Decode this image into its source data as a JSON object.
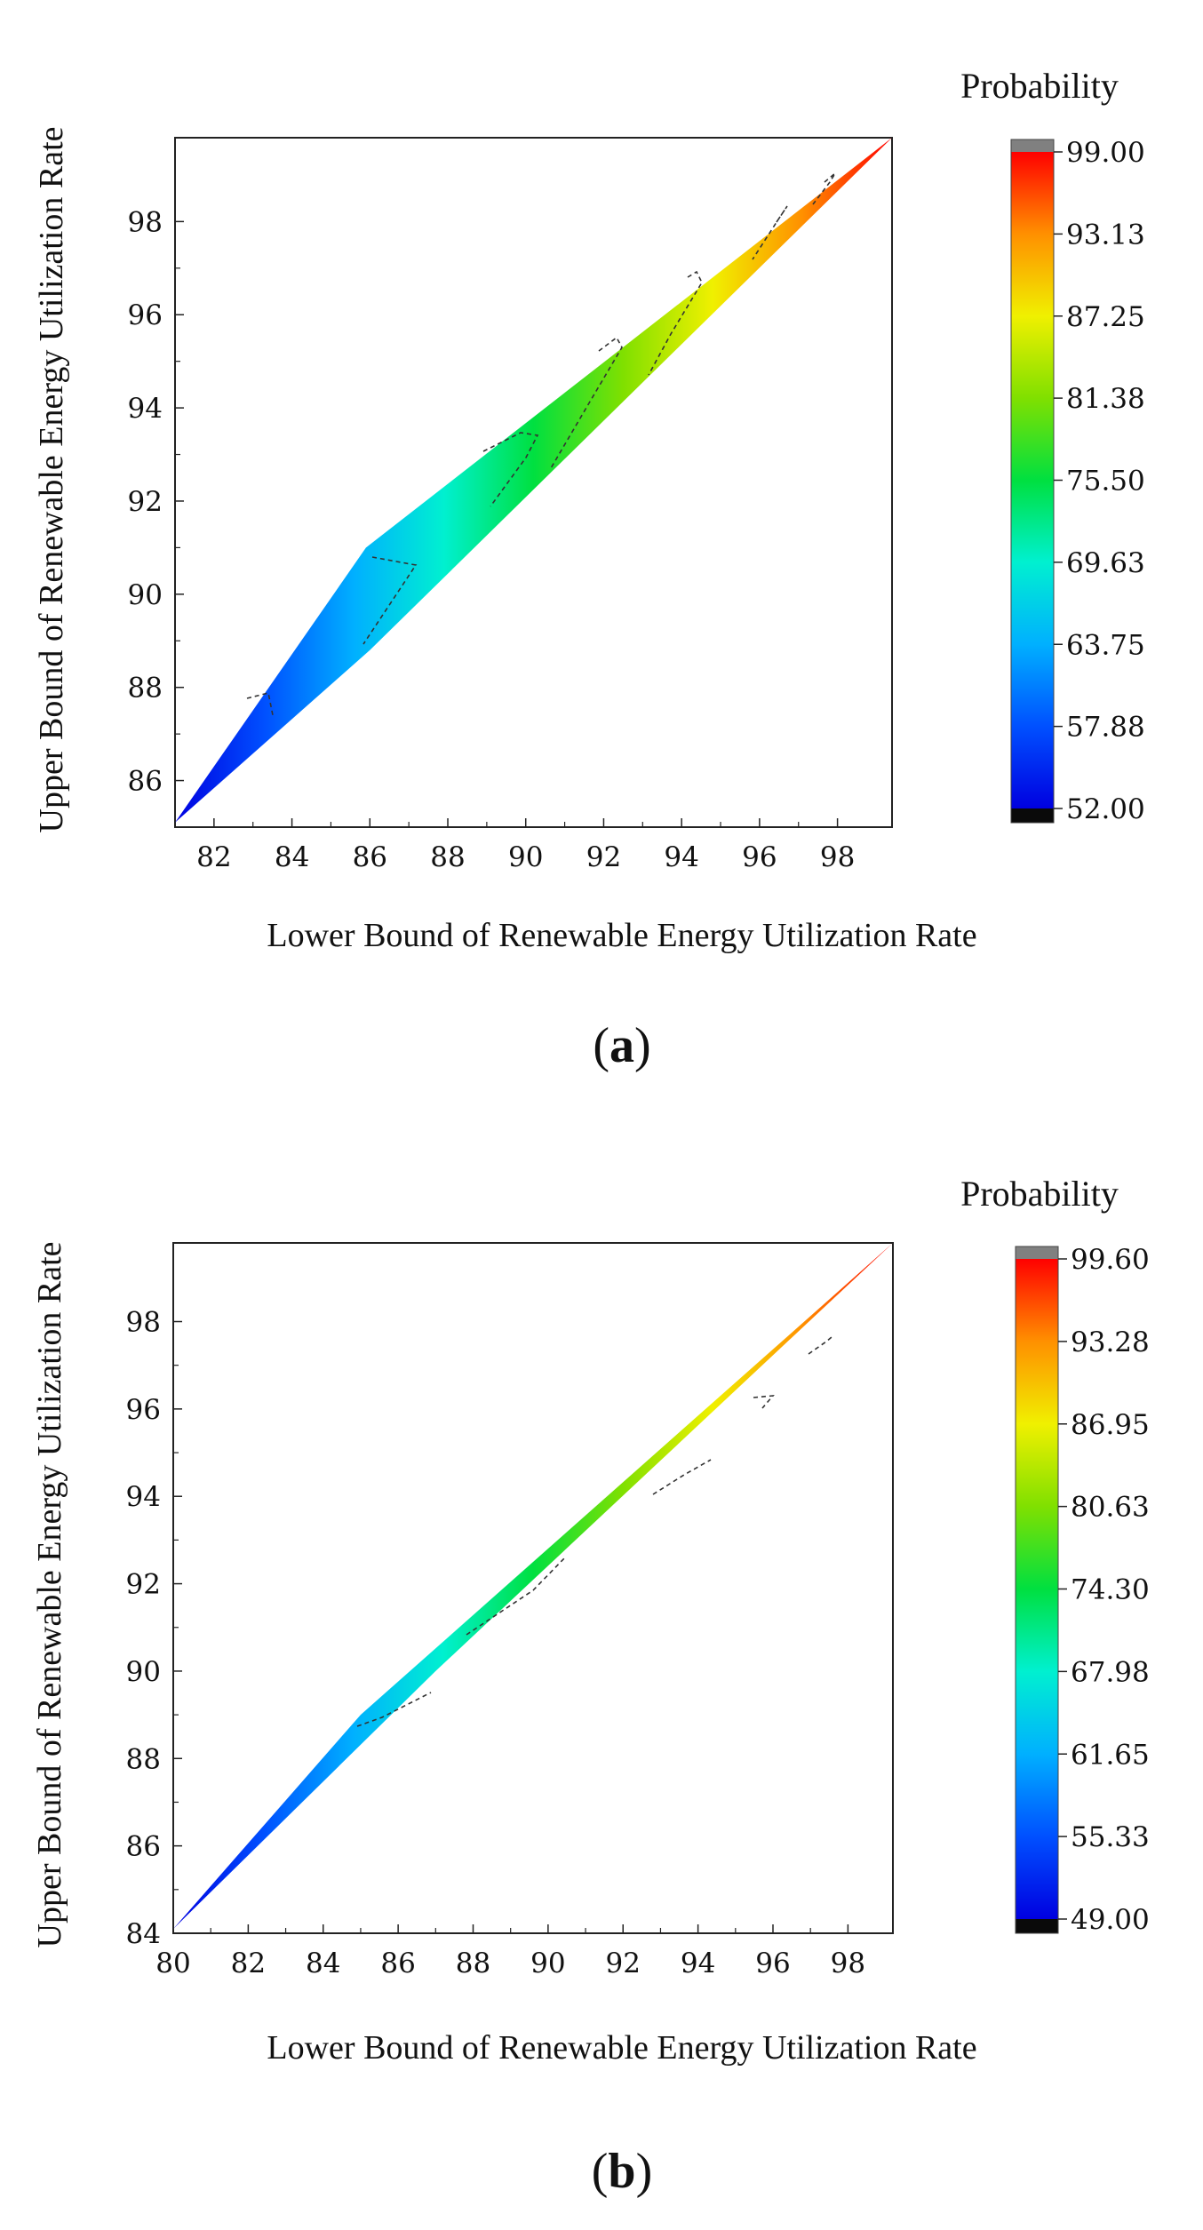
{
  "chart_data": [
    {
      "type": "area",
      "panel_label": "a",
      "xlabel": "Lower Bound of Renewable Energy Utilization Rate",
      "ylabel": "Upper Bound of Renewable Energy Utilization Rate",
      "xlim": [
        81,
        99.4
      ],
      "ylim": [
        85,
        99.8
      ],
      "x_ticks": [
        82,
        84,
        86,
        88,
        90,
        92,
        94,
        96,
        98
      ],
      "y_ticks": [
        86,
        88,
        90,
        92,
        94,
        96,
        98
      ],
      "x_tick_labels": [
        "82",
        "84",
        "86",
        "88",
        "90",
        "92",
        "94",
        "96",
        "98"
      ],
      "y_tick_labels": [
        "86",
        "88",
        "90",
        "92",
        "94",
        "96",
        "98"
      ],
      "region_upper_edge": [
        [
          81,
          85.1
        ],
        [
          85.9,
          91
        ],
        [
          99.4,
          99.8
        ]
      ],
      "region_lower_edge": [
        [
          81,
          85.1
        ],
        [
          86,
          88.8
        ],
        [
          99.4,
          99.8
        ]
      ],
      "colorbar": {
        "title": "Probability",
        "min": 52,
        "max": 99,
        "ticks": [
          "99.00",
          "93.13",
          "87.25",
          "81.38",
          "75.50",
          "69.63",
          "63.75",
          "57.88",
          "52.00"
        ]
      }
    },
    {
      "type": "area",
      "panel_label": "b",
      "xlabel": "Lower Bound of Renewable Energy Utilization Rate",
      "ylabel": "Upper Bound of Renewable Energy Utilization Rate",
      "xlim": [
        80,
        99.2
      ],
      "ylim": [
        84,
        99.8
      ],
      "x_ticks": [
        80,
        82,
        84,
        86,
        88,
        90,
        92,
        94,
        96,
        98
      ],
      "y_ticks": [
        84,
        86,
        88,
        90,
        92,
        94,
        96,
        98
      ],
      "x_tick_labels": [
        "80",
        "82",
        "84",
        "86",
        "88",
        "90",
        "92",
        "94",
        "96",
        "98"
      ],
      "y_tick_labels": [
        "84",
        "86",
        "88",
        "90",
        "92",
        "94",
        "96",
        "98"
      ],
      "region_upper_edge": [
        [
          80,
          84.1
        ],
        [
          85,
          89
        ],
        [
          99.2,
          99.8
        ]
      ],
      "region_lower_edge": [
        [
          80,
          84.1
        ],
        [
          87,
          90
        ],
        [
          99.2,
          99.8
        ]
      ],
      "colorbar": {
        "title": "Probability",
        "min": 49,
        "max": 99.6,
        "ticks": [
          "99.60",
          "93.28",
          "86.95",
          "80.63",
          "74.30",
          "67.98",
          "61.65",
          "55.33",
          "49.00"
        ]
      }
    }
  ]
}
